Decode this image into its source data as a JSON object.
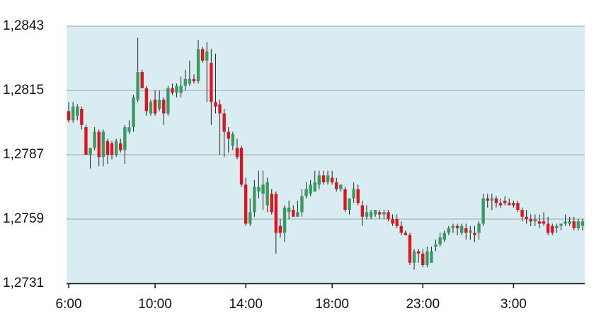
{
  "chart_data": {
    "type": "candlestick",
    "categories": [
      "6:00",
      null,
      null,
      null,
      null,
      null,
      null,
      null,
      null,
      null,
      null,
      null,
      null,
      null,
      null,
      null,
      null,
      null,
      null,
      null,
      "10:00",
      null,
      null,
      null,
      null,
      null,
      null,
      null,
      null,
      null,
      null,
      null,
      null,
      null,
      null,
      null,
      null,
      null,
      null,
      null,
      null,
      "14:00",
      null,
      null,
      null,
      null,
      null,
      null,
      null,
      null,
      null,
      null,
      null,
      null,
      null,
      null,
      null,
      null,
      null,
      null,
      null,
      "18:00",
      null,
      null,
      null,
      null,
      null,
      null,
      null,
      null,
      null,
      null,
      null,
      null,
      null,
      null,
      null,
      null,
      null,
      null,
      null,
      null,
      "23:00",
      null,
      null,
      null,
      null,
      null,
      null,
      null,
      null,
      null,
      null,
      null,
      null,
      null,
      null,
      null,
      null,
      null,
      null,
      null,
      null,
      "3:00",
      null,
      null,
      null,
      null,
      null,
      null,
      null,
      null,
      null,
      null,
      null,
      null,
      null,
      null,
      null,
      null
    ],
    "open": [
      1.2806,
      1.2802,
      1.2804,
      1.2807,
      1.2799,
      1.2787,
      1.279,
      1.2797,
      1.2786,
      1.2793,
      1.2792,
      1.2787,
      1.2792,
      1.2789,
      1.2797,
      1.2799,
      1.2811,
      1.2823,
      1.2816,
      1.2805,
      1.2811,
      1.2807,
      1.2811,
      1.2805,
      1.2816,
      1.2814,
      1.2814,
      1.2817,
      1.2818,
      1.282,
      1.2819,
      1.2833,
      1.2828,
      1.2827,
      1.281,
      1.2809,
      1.2805,
      1.2797,
      1.2791,
      1.279,
      1.279,
      1.2774,
      1.2757,
      1.2762,
      1.2771,
      1.277,
      1.2765,
      1.277,
      1.277,
      1.2756,
      1.2753,
      1.2762,
      1.2763,
      1.276,
      1.2762,
      1.2769,
      1.277,
      1.2771,
      1.2774,
      1.2778,
      1.2775,
      1.2777,
      1.2775,
      1.2772,
      1.2772,
      1.2763,
      1.2768,
      1.2772,
      1.2765,
      1.276,
      1.276,
      1.2761,
      1.2762,
      1.2761,
      1.2762,
      1.2759,
      1.2759,
      1.2756,
      1.2753,
      1.2752,
      1.274,
      1.2745,
      1.2744,
      1.2739,
      1.274,
      1.2747,
      1.2748,
      1.275,
      1.2753,
      1.2755,
      1.2756,
      1.2753,
      1.2755,
      1.2753,
      1.2753,
      1.2753,
      1.2757,
      1.2768,
      1.2767,
      1.2768,
      1.2766,
      1.2767,
      1.2766,
      1.2766,
      1.2766,
      1.2763,
      1.276,
      1.2759,
      1.2758,
      1.2758,
      1.2758,
      1.2757,
      1.2756,
      1.2755,
      1.2756,
      1.2757,
      1.2757,
      1.2758,
      1.2755,
      1.2756
    ],
    "high": [
      1.281,
      1.281,
      1.2809,
      1.2808,
      1.28,
      1.279,
      1.2799,
      1.2798,
      1.2798,
      1.2794,
      1.2793,
      1.2794,
      1.2794,
      1.28,
      1.2802,
      1.2813,
      1.2838,
      1.2824,
      1.2817,
      1.2811,
      1.2815,
      1.2815,
      1.2812,
      1.2817,
      1.2818,
      1.2818,
      1.2821,
      1.2824,
      1.2828,
      1.2822,
      1.2837,
      1.2834,
      1.2836,
      1.2833,
      1.2831,
      1.2811,
      1.2807,
      1.2799,
      1.2797,
      1.2794,
      1.2791,
      1.2777,
      1.2768,
      1.2776,
      1.278,
      1.278,
      1.2777,
      1.2772,
      1.2771,
      1.2759,
      1.2765,
      1.2767,
      1.2765,
      1.2767,
      1.2772,
      1.2775,
      1.2776,
      1.278,
      1.278,
      1.278,
      1.278,
      1.278,
      1.2777,
      1.2774,
      1.2773,
      1.2768,
      1.2775,
      1.2774,
      1.2767,
      1.2765,
      1.2763,
      1.2763,
      1.2763,
      1.2763,
      1.2763,
      1.2761,
      1.2761,
      1.2758,
      1.2754,
      1.2753,
      1.2746,
      1.2746,
      1.2746,
      1.2747,
      1.2747,
      1.275,
      1.2753,
      1.2754,
      1.2756,
      1.2757,
      1.2757,
      1.2757,
      1.2757,
      1.2756,
      1.2756,
      1.2758,
      1.277,
      1.277,
      1.277,
      1.2769,
      1.2768,
      1.2769,
      1.2768,
      1.2767,
      1.2767,
      1.2764,
      1.2763,
      1.2761,
      1.2761,
      1.2761,
      1.2762,
      1.276,
      1.2757,
      1.2757,
      1.2757,
      1.2761,
      1.276,
      1.276,
      1.2759,
      1.2759
    ],
    "low": [
      1.2801,
      1.2801,
      1.2802,
      1.2798,
      1.2787,
      1.2781,
      1.2789,
      1.2782,
      1.2782,
      1.2783,
      1.2785,
      1.2786,
      1.2788,
      1.2783,
      1.2796,
      1.2797,
      1.281,
      1.2816,
      1.2804,
      1.2804,
      1.2804,
      1.2806,
      1.28,
      1.2804,
      1.2813,
      1.2812,
      1.2812,
      1.2815,
      1.2817,
      1.2818,
      1.2818,
      1.2827,
      1.281,
      1.28,
      1.2805,
      1.2787,
      1.2786,
      1.2788,
      1.2789,
      1.2785,
      1.2773,
      1.2756,
      1.2756,
      1.276,
      1.2768,
      1.2763,
      1.2762,
      1.2761,
      1.2744,
      1.2751,
      1.2749,
      1.2759,
      1.276,
      1.276,
      1.276,
      1.2768,
      1.2769,
      1.2771,
      1.2772,
      1.2774,
      1.2774,
      1.2774,
      1.2771,
      1.2771,
      1.2762,
      1.2761,
      1.2766,
      1.2765,
      1.2756,
      1.2759,
      1.2759,
      1.276,
      1.2759,
      1.2759,
      1.2758,
      1.2756,
      1.2755,
      1.2752,
      1.2752,
      1.2739,
      1.2737,
      1.274,
      1.2738,
      1.2738,
      1.274,
      1.2745,
      1.2747,
      1.2749,
      1.2752,
      1.2753,
      1.2752,
      1.2752,
      1.275,
      1.275,
      1.2749,
      1.275,
      1.2756,
      1.2764,
      1.2763,
      1.2764,
      1.2764,
      1.2765,
      1.2765,
      1.2764,
      1.2762,
      1.2758,
      1.2757,
      1.2756,
      1.2756,
      1.2755,
      1.2756,
      1.2752,
      1.2752,
      1.2753,
      1.2754,
      1.2756,
      1.2756,
      1.2754,
      1.2754,
      1.2754
    ],
    "close": [
      1.2802,
      1.2808,
      1.2808,
      1.28,
      1.2787,
      1.279,
      1.2797,
      1.2786,
      1.2797,
      1.2787,
      1.2787,
      1.2793,
      1.2789,
      1.2799,
      1.2799,
      1.2812,
      1.2823,
      1.2816,
      1.2806,
      1.281,
      1.2805,
      1.2811,
      1.2805,
      1.2816,
      1.2814,
      1.2817,
      1.2817,
      1.282,
      1.282,
      1.2819,
      1.2833,
      1.2828,
      1.2832,
      1.281,
      1.2808,
      1.2805,
      1.2797,
      1.2794,
      1.2796,
      1.2786,
      1.2774,
      1.2757,
      1.2762,
      1.2773,
      1.2773,
      1.2774,
      1.2775,
      1.2762,
      1.2753,
      1.2753,
      1.2764,
      1.2764,
      1.276,
      1.2762,
      1.2769,
      1.2772,
      1.2774,
      1.2775,
      1.2778,
      1.2775,
      1.2778,
      1.2775,
      1.2772,
      1.2774,
      1.2763,
      1.2768,
      1.2772,
      1.2766,
      1.276,
      1.2762,
      1.2762,
      1.2763,
      1.2761,
      1.2762,
      1.2759,
      1.2757,
      1.2756,
      1.2753,
      1.2752,
      1.274,
      1.2745,
      1.2744,
      1.2739,
      1.2745,
      1.2745,
      1.2748,
      1.2751,
      1.2753,
      1.2755,
      1.2756,
      1.2755,
      1.2756,
      1.2753,
      1.2754,
      1.2752,
      1.2757,
      1.2768,
      1.2767,
      1.2768,
      1.2766,
      1.2765,
      1.2766,
      1.2765,
      1.2765,
      1.2763,
      1.276,
      1.2759,
      1.2758,
      1.2759,
      1.2757,
      1.2757,
      1.2753,
      1.2753,
      1.2756,
      1.2757,
      1.2758,
      1.2758,
      1.2755,
      1.2758,
      1.2758
    ],
    "up_color": "#3a9a62",
    "down_color": "#e0141e",
    "wick_color": "#222222",
    "ylim": [
      1.2731,
      1.2843
    ],
    "yticks": [
      {
        "value": 1.2731,
        "label": "1,2731"
      },
      {
        "value": 1.2759,
        "label": "1,2759"
      },
      {
        "value": 1.2787,
        "label": "1,2787"
      },
      {
        "value": 1.2815,
        "label": "1,2815"
      },
      {
        "value": 1.2843,
        "label": "1,2843"
      }
    ],
    "grid": true
  }
}
